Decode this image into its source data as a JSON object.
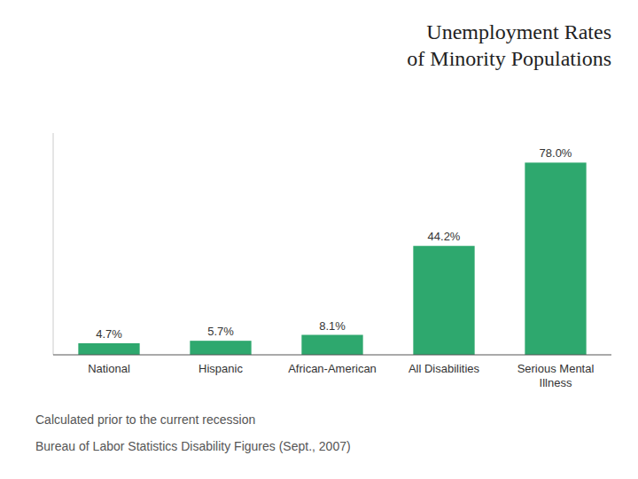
{
  "chart_data": {
    "type": "bar",
    "title": "Unemployment Rates\nof Minority Populations",
    "categories": [
      "National",
      "Hispanic",
      "African-American",
      "All Disabilities",
      "Serious Mental\nIllness"
    ],
    "values": [
      4.7,
      5.7,
      8.1,
      44.2,
      78.0
    ],
    "value_labels": [
      "4.7%",
      "5.7%",
      "8.1%",
      "44.2%",
      "78.0%"
    ],
    "color": "#2ea86e",
    "ylim": [
      0,
      90
    ],
    "data_labels": true,
    "tick_labels": "x",
    "grid": false,
    "annotations": [
      "Calculated prior to the current recession",
      "Bureau of Labor Statistics Disability Figures (Sept., 2007)"
    ]
  }
}
